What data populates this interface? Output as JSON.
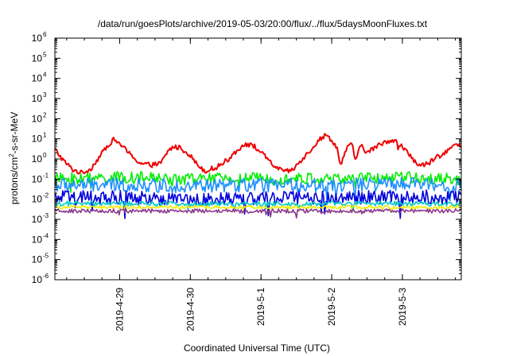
{
  "chart_data": {
    "type": "line",
    "title": "/data/run/goesPlots/archive/2019-05-03/20:00/flux/../flux/5daysMoonFluxes.txt",
    "xlabel": "Coordinated Universal Time (UTC)",
    "ylabel_parts": [
      "protons/cm",
      "2",
      "-s-sr-MeV"
    ],
    "x_range": [
      "2019-04-28 02:00",
      "2019-05-03 20:00"
    ],
    "y_scale": "log",
    "ylim": [
      1e-06,
      1000000.0
    ],
    "y_ticks": [
      {
        "base": "10",
        "exp": "-6",
        "value": 1e-06
      },
      {
        "base": "10",
        "exp": "-5",
        "value": 1e-05
      },
      {
        "base": "10",
        "exp": "-4",
        "value": 0.0001
      },
      {
        "base": "10",
        "exp": "-3",
        "value": 0.001
      },
      {
        "base": "10",
        "exp": "-2",
        "value": 0.01
      },
      {
        "base": "10",
        "exp": "-1",
        "value": 0.1
      },
      {
        "base": "10",
        "exp": "0",
        "value": 1
      },
      {
        "base": "10",
        "exp": "1",
        "value": 10
      },
      {
        "base": "10",
        "exp": "2",
        "value": 100
      },
      {
        "base": "10",
        "exp": "3",
        "value": 1000
      },
      {
        "base": "10",
        "exp": "4",
        "value": 10000
      },
      {
        "base": "10",
        "exp": "5",
        "value": 100000
      },
      {
        "base": "10",
        "exp": "6",
        "value": 1000000
      }
    ],
    "x_ticks": [
      {
        "label": "2019-4-29",
        "value": "2019-04-29 00:00"
      },
      {
        "label": "2019-4-30",
        "value": "2019-04-30 00:00"
      },
      {
        "label": "2019-5-1",
        "value": "2019-05-01 00:00"
      },
      {
        "label": "2019-5-2",
        "value": "2019-05-02 00:00"
      },
      {
        "label": "2019-5-3",
        "value": "2019-05-03 00:00"
      }
    ],
    "grid": false,
    "legend": "none",
    "series": [
      {
        "color": "#ee0000",
        "noise": 0.12,
        "points": [
          [
            "2019-04-28 02:00",
            3
          ],
          [
            "2019-04-28 05:00",
            0.8
          ],
          [
            "2019-04-28 08:00",
            0.3
          ],
          [
            "2019-04-28 11:00",
            0.2
          ],
          [
            "2019-04-28 14:00",
            0.3
          ],
          [
            "2019-04-28 17:00",
            1.2
          ],
          [
            "2019-04-28 20:00",
            5
          ],
          [
            "2019-04-28 22:00",
            9
          ],
          [
            "2019-04-29 00:00",
            6
          ],
          [
            "2019-04-29 03:00",
            2
          ],
          [
            "2019-04-29 07:00",
            0.6
          ],
          [
            "2019-04-29 11:00",
            0.5
          ],
          [
            "2019-04-29 14:00",
            0.6
          ],
          [
            "2019-04-29 16:00",
            2
          ],
          [
            "2019-04-29 18:00",
            4
          ],
          [
            "2019-04-29 21:00",
            3.5
          ],
          [
            "2019-04-30 00:00",
            1.5
          ],
          [
            "2019-04-30 02:00",
            0.6
          ],
          [
            "2019-04-30 05:00",
            0.25
          ],
          [
            "2019-04-30 09:00",
            0.4
          ],
          [
            "2019-04-30 13:00",
            1
          ],
          [
            "2019-04-30 16:00",
            3
          ],
          [
            "2019-04-30 19:00",
            5.5
          ],
          [
            "2019-04-30 22:00",
            4
          ],
          [
            "2019-05-01 01:00",
            1.5
          ],
          [
            "2019-05-01 04:00",
            0.5
          ],
          [
            "2019-05-01 08:00",
            0.22
          ],
          [
            "2019-05-01 11:00",
            0.3
          ],
          [
            "2019-05-01 14:00",
            1
          ],
          [
            "2019-05-01 17:00",
            3
          ],
          [
            "2019-05-01 20:00",
            10
          ],
          [
            "2019-05-01 22:00",
            15
          ],
          [
            "2019-05-02 00:00",
            9
          ],
          [
            "2019-05-02 02:00",
            3
          ],
          [
            "2019-05-02 03:00",
            0.5
          ],
          [
            "2019-05-02 05:00",
            3
          ],
          [
            "2019-05-02 07:00",
            6
          ],
          [
            "2019-05-02 08:00",
            0.8
          ],
          [
            "2019-05-02 10:00",
            5
          ],
          [
            "2019-05-02 12:00",
            2
          ],
          [
            "2019-05-02 15:00",
            4
          ],
          [
            "2019-05-02 18:00",
            7
          ],
          [
            "2019-05-02 21:00",
            9
          ],
          [
            "2019-05-03 00:00",
            4
          ],
          [
            "2019-05-03 03:00",
            1.2
          ],
          [
            "2019-05-03 06:00",
            0.45
          ],
          [
            "2019-05-03 09:00",
            0.6
          ],
          [
            "2019-05-03 12:00",
            1.3
          ],
          [
            "2019-05-03 15:00",
            2.5
          ],
          [
            "2019-05-03 18:00",
            5
          ],
          [
            "2019-05-03 20:00",
            4
          ]
        ]
      },
      {
        "color": "#00ee00",
        "noise": 0.3,
        "points": [
          [
            "2019-04-28 02:00",
            0.1
          ],
          [
            "2019-04-29 02:00",
            0.12
          ],
          [
            "2019-04-30 02:00",
            0.1
          ],
          [
            "2019-05-01 02:00",
            0.11
          ],
          [
            "2019-05-02 02:00",
            0.1
          ],
          [
            "2019-05-03 02:00",
            0.12
          ],
          [
            "2019-05-03 20:00",
            0.1
          ]
        ]
      },
      {
        "color": "#1e90ff",
        "noise": 0.35,
        "points": [
          [
            "2019-04-28 02:00",
            0.05
          ],
          [
            "2019-04-29 02:00",
            0.05
          ],
          [
            "2019-04-30 02:00",
            0.045
          ],
          [
            "2019-05-01 02:00",
            0.05
          ],
          [
            "2019-05-02 02:00",
            0.05
          ],
          [
            "2019-05-03 02:00",
            0.055
          ],
          [
            "2019-05-03 20:00",
            0.05
          ]
        ]
      },
      {
        "color": "#0000dd",
        "noise": 0.35,
        "points": [
          [
            "2019-04-28 02:00",
            0.012
          ],
          [
            "2019-04-29 02:00",
            0.012
          ],
          [
            "2019-04-30 02:00",
            0.01
          ],
          [
            "2019-05-01 02:00",
            0.012
          ],
          [
            "2019-05-02 02:00",
            0.012
          ],
          [
            "2019-05-03 02:00",
            0.013
          ],
          [
            "2019-05-03 20:00",
            0.012
          ]
        ]
      },
      {
        "color": "#00c8c8",
        "noise": 0.12,
        "points": [
          [
            "2019-04-28 02:00",
            0.006
          ],
          [
            "2019-05-03 20:00",
            0.006
          ]
        ]
      },
      {
        "color": "#eeee00",
        "noise": 0.08,
        "points": [
          [
            "2019-04-28 02:00",
            0.004
          ],
          [
            "2019-05-03 20:00",
            0.004
          ]
        ]
      },
      {
        "color": "#8b3a8b",
        "noise": 0.1,
        "points": [
          [
            "2019-04-28 02:00",
            0.0026
          ],
          [
            "2019-05-03 20:00",
            0.0026
          ]
        ]
      }
    ]
  }
}
